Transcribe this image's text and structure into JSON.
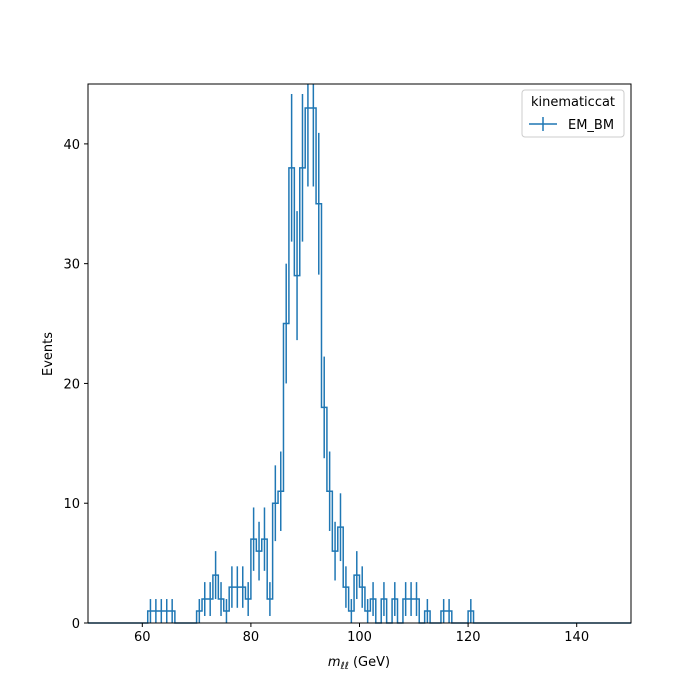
{
  "chart_data": {
    "type": "histogram",
    "xlabel": "m_{ℓℓ} (GeV)",
    "xlabel_base": "m",
    "xlabel_sub": "ℓℓ",
    "xlabel_unit": " (GeV)",
    "ylabel": "Events",
    "xlim": [
      50,
      150
    ],
    "ylim": [
      0,
      45
    ],
    "xticks": [
      60,
      80,
      100,
      120,
      140
    ],
    "yticks": [
      0,
      10,
      20,
      30,
      40
    ],
    "bin_width": 1,
    "series": [
      {
        "name": "EM_BM",
        "color": "#1f77b4",
        "bins": [
          {
            "x": 61,
            "y": 1
          },
          {
            "x": 62,
            "y": 1
          },
          {
            "x": 63,
            "y": 1
          },
          {
            "x": 64,
            "y": 1
          },
          {
            "x": 65,
            "y": 1
          },
          {
            "x": 70,
            "y": 1
          },
          {
            "x": 71,
            "y": 2
          },
          {
            "x": 72,
            "y": 2
          },
          {
            "x": 73,
            "y": 4
          },
          {
            "x": 74,
            "y": 2
          },
          {
            "x": 75,
            "y": 1
          },
          {
            "x": 76,
            "y": 3
          },
          {
            "x": 77,
            "y": 3
          },
          {
            "x": 78,
            "y": 3
          },
          {
            "x": 79,
            "y": 2
          },
          {
            "x": 80,
            "y": 7
          },
          {
            "x": 81,
            "y": 6
          },
          {
            "x": 82,
            "y": 7
          },
          {
            "x": 83,
            "y": 2
          },
          {
            "x": 84,
            "y": 10
          },
          {
            "x": 85,
            "y": 11
          },
          {
            "x": 86,
            "y": 25
          },
          {
            "x": 87,
            "y": 38
          },
          {
            "x": 88,
            "y": 29
          },
          {
            "x": 89,
            "y": 38
          },
          {
            "x": 90,
            "y": 43
          },
          {
            "x": 91,
            "y": 43
          },
          {
            "x": 92,
            "y": 35
          },
          {
            "x": 93,
            "y": 18
          },
          {
            "x": 94,
            "y": 11
          },
          {
            "x": 95,
            "y": 6
          },
          {
            "x": 96,
            "y": 8
          },
          {
            "x": 97,
            "y": 3
          },
          {
            "x": 98,
            "y": 1
          },
          {
            "x": 99,
            "y": 4
          },
          {
            "x": 100,
            "y": 3
          },
          {
            "x": 101,
            "y": 1
          },
          {
            "x": 102,
            "y": 2
          },
          {
            "x": 104,
            "y": 2
          },
          {
            "x": 106,
            "y": 2
          },
          {
            "x": 108,
            "y": 2
          },
          {
            "x": 109,
            "y": 2
          },
          {
            "x": 110,
            "y": 2
          },
          {
            "x": 112,
            "y": 1
          },
          {
            "x": 115,
            "y": 1
          },
          {
            "x": 116,
            "y": 1
          },
          {
            "x": 120,
            "y": 1
          }
        ]
      }
    ],
    "legend": {
      "title": "kinematiccat",
      "placement": "top-right",
      "entries": [
        "EM_BM"
      ]
    }
  }
}
